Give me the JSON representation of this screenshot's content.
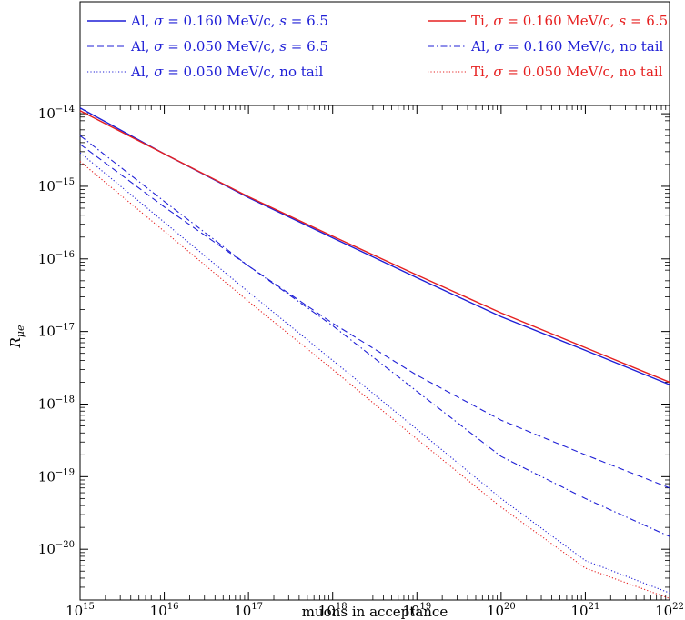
{
  "chart_data": {
    "type": "line",
    "title": "",
    "xlabel": "muons in acceptance",
    "ylabel": "R_{μe}",
    "xscale": "log",
    "yscale": "log",
    "xlim": [
      1000000000000000.0,
      1e+22
    ],
    "ylim": [
      2e-21,
      1.3e-14
    ],
    "x_ticks": [
      {
        "base": "10",
        "exp": "15",
        "value": 1000000000000000.0
      },
      {
        "base": "10",
        "exp": "16",
        "value": 1e+16
      },
      {
        "base": "10",
        "exp": "17",
        "value": 1e+17
      },
      {
        "base": "10",
        "exp": "18",
        "value": 1e+18
      },
      {
        "base": "10",
        "exp": "19",
        "value": 1e+19
      },
      {
        "base": "10",
        "exp": "20",
        "value": 1e+20
      },
      {
        "base": "10",
        "exp": "21",
        "value": 1e+21
      },
      {
        "base": "10",
        "exp": "22",
        "value": 1e+22
      }
    ],
    "y_ticks": [
      {
        "base": "10",
        "exp": "−14",
        "value": 1e-14
      },
      {
        "base": "10",
        "exp": "−15",
        "value": 1e-15
      },
      {
        "base": "10",
        "exp": "−16",
        "value": 1e-16
      },
      {
        "base": "10",
        "exp": "−17",
        "value": 1e-17
      },
      {
        "base": "10",
        "exp": "−18",
        "value": 1e-18
      },
      {
        "base": "10",
        "exp": "−19",
        "value": 1e-19
      },
      {
        "base": "10",
        "exp": "−20",
        "value": 1e-20
      }
    ],
    "legend_position": "top (above plot, two columns)",
    "grid": false,
    "series": [
      {
        "name": "Al, σ = 0.160 MeV/c, s = 6.5",
        "color": "#1f1fd6",
        "dash": "solid",
        "x": [
          1000000000000000.0,
          1e+16,
          1e+17,
          1e+18,
          1e+19,
          1e+20,
          1e+21,
          1e+22
        ],
        "y": [
          1.2e-14,
          2.8e-15,
          7e-16,
          1.95e-16,
          5.5e-17,
          1.6e-17,
          5.5e-18,
          1.85e-18
        ]
      },
      {
        "name": "Ti, σ = 0.160 MeV/c, s = 6.5",
        "color": "#e62020",
        "dash": "solid",
        "x": [
          1000000000000000.0,
          1e+16,
          1e+17,
          1e+18,
          1e+19,
          1e+20,
          1e+21,
          1e+22
        ],
        "y": [
          1.1e-14,
          2.8e-15,
          7.2e-16,
          2.05e-16,
          6e-17,
          1.8e-17,
          6e-18,
          2e-18
        ]
      },
      {
        "name": "Al, σ = 0.050 MeV/c, s = 6.5",
        "color": "#1f1fd6",
        "dash": "dashed",
        "x": [
          1000000000000000.0,
          1e+16,
          1e+17,
          1e+18,
          1e+19,
          1e+20,
          1e+21,
          1e+22
        ],
        "y": [
          3.8e-15,
          5.2e-16,
          8e-17,
          1.3e-17,
          2.5e-18,
          6e-19,
          2e-19,
          7e-20
        ]
      },
      {
        "name": "Al, σ = 0.160 MeV/c, no tail",
        "color": "#1f1fd6",
        "dash": "dashdot",
        "x": [
          1000000000000000.0,
          1e+16,
          1e+17,
          1e+18,
          1e+19,
          1e+20,
          1e+21,
          1e+22
        ],
        "y": [
          5e-15,
          6.2e-16,
          8e-17,
          1.2e-17,
          1.5e-18,
          1.9e-19,
          5e-20,
          1.5e-20
        ]
      },
      {
        "name": "Al, σ = 0.050 MeV/c, no tail",
        "color": "#1f1fd6",
        "dash": "dotted",
        "x": [
          1000000000000000.0,
          1e+16,
          1e+17,
          1e+18,
          1e+19,
          1e+20,
          1e+21,
          1e+22
        ],
        "y": [
          2.9e-15,
          3.2e-16,
          3.5e-17,
          4e-18,
          4.5e-19,
          5e-20,
          7e-21,
          2.5e-21
        ]
      },
      {
        "name": "Ti, σ = 0.050 MeV/c, no tail",
        "color": "#e62020",
        "dash": "dotted",
        "x": [
          1000000000000000.0,
          1e+16,
          1e+17,
          1e+18,
          1e+19,
          1e+20,
          1e+21,
          1e+22
        ],
        "y": [
          2.2e-15,
          2.4e-16,
          2.6e-17,
          3e-18,
          3.3e-19,
          3.8e-20,
          5.5e-21,
          2.1e-21
        ]
      }
    ],
    "legend": [
      {
        "series": 0,
        "prefix": "Al, ",
        "sigma": "σ",
        "mid": " = 0.160 MeV/c, ",
        "svar": "s",
        "tail": " = 6.5"
      },
      {
        "series": 1,
        "prefix": "Ti, ",
        "sigma": "σ",
        "mid": " = 0.160 MeV/c, ",
        "svar": "s",
        "tail": " = 6.5"
      },
      {
        "series": 2,
        "prefix": "Al, ",
        "sigma": "σ",
        "mid": " = 0.050 MeV/c, ",
        "svar": "s",
        "tail": " = 6.5"
      },
      {
        "series": 3,
        "prefix": "Al, ",
        "sigma": "σ",
        "mid": " = 0.160 MeV/c, no tail",
        "svar": "",
        "tail": ""
      },
      {
        "series": 4,
        "prefix": "Al, ",
        "sigma": "σ",
        "mid": " = 0.050 MeV/c, no tail",
        "svar": "",
        "tail": ""
      },
      {
        "series": 5,
        "prefix": "Ti, ",
        "sigma": "σ",
        "mid": " = 0.050 MeV/c, no tail",
        "svar": "",
        "tail": ""
      }
    ]
  }
}
